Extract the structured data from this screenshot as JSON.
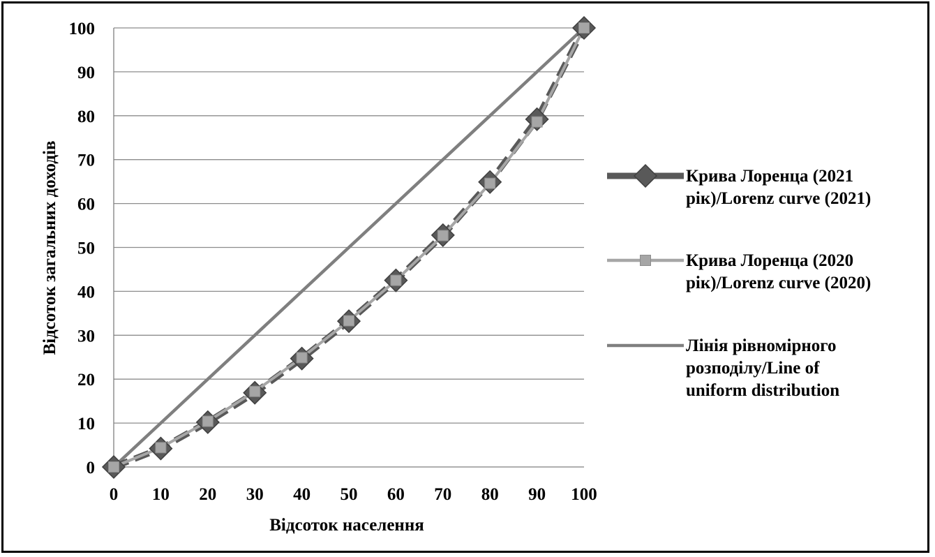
{
  "chart_data": {
    "type": "line",
    "xlabel": "Відсоток населення",
    "ylabel": "Відсоток загальних доходів",
    "x": [
      0,
      10,
      20,
      30,
      40,
      50,
      60,
      70,
      80,
      90,
      100
    ],
    "xticks": [
      "0",
      "10",
      "20",
      "30",
      "40",
      "50",
      "60",
      "70",
      "80",
      "90",
      "100"
    ],
    "yticks": [
      "0",
      "10",
      "20",
      "30",
      "40",
      "50",
      "60",
      "70",
      "80",
      "90",
      "100"
    ],
    "xlim": [
      0,
      100
    ],
    "ylim": [
      0,
      100
    ],
    "grid": "horizontal",
    "legend_position": "right",
    "series": [
      {
        "name": "Крива Лоренца  (2021 рік)/Lorenz curve (2021)",
        "legend_lines": [
          "Крива Лоренца  (2021",
          "рік)/Lorenz curve (2021)"
        ],
        "values": [
          0,
          4.2,
          10.2,
          16.9,
          24.7,
          33.2,
          42.5,
          52.8,
          64.9,
          79.2,
          100
        ],
        "color": "#595959",
        "marker": "diamond",
        "dash": "dashed"
      },
      {
        "name": "Крива Лоренца  (2020 рік)/Lorenz curve (2020)",
        "legend_lines": [
          "Крива Лоренца  (2020",
          "рік)/Lorenz curve (2020)"
        ],
        "values": [
          0,
          4.4,
          10.4,
          17.2,
          24.9,
          33.3,
          42.5,
          52.7,
          64.6,
          78.6,
          100
        ],
        "color": "#a6a6a6",
        "marker": "square",
        "dash": "solid"
      },
      {
        "name": "Лінія рівномірного розподілу/Line of uniform distribution",
        "legend_lines": [
          "Лінія рівномірного",
          "розподілу/Line of",
          "uniform distribution"
        ],
        "values": [
          0,
          10,
          20,
          30,
          40,
          50,
          60,
          70,
          80,
          90,
          100
        ],
        "color": "#7f7f7f",
        "marker": "none",
        "dash": "solid"
      }
    ]
  }
}
